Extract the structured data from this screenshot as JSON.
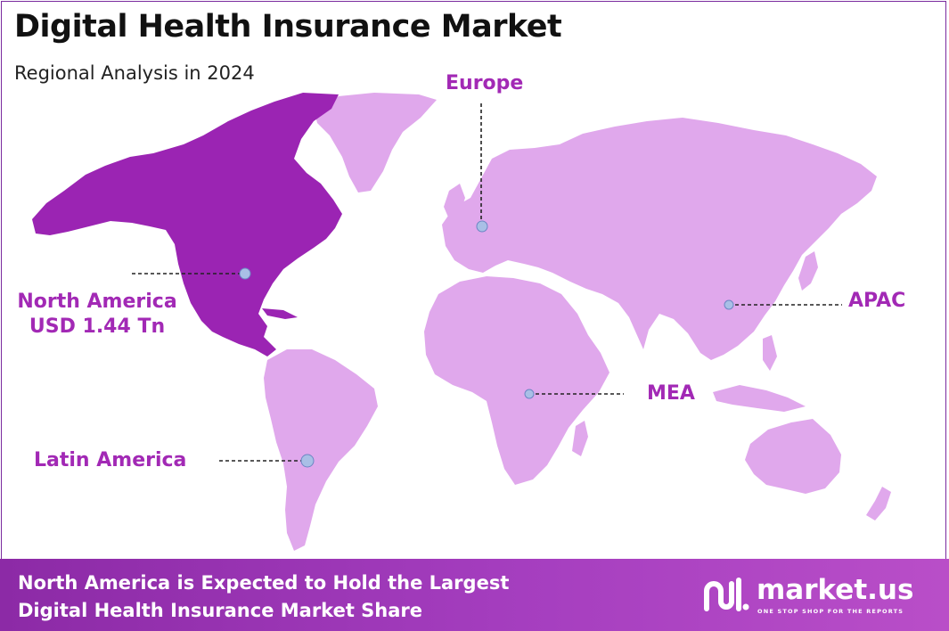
{
  "title": "Digital Health Insurance Market",
  "subtitle": "Regional Analysis in 2024",
  "colors": {
    "highlight_region": "#9b24b3",
    "other_regions": "#e0a8ec",
    "label_text": "#a229b5",
    "marker_fill": "#a9bfe6",
    "footer_start": "#8c2aa6",
    "footer_end": "#b94ec8"
  },
  "regions": {
    "north_america": {
      "name": "North America",
      "value": "USD 1.44 Tn",
      "highlighted": true
    },
    "europe": {
      "name": "Europe",
      "highlighted": false
    },
    "apac": {
      "name": "APAC",
      "highlighted": false
    },
    "mea": {
      "name": "MEA",
      "highlighted": false
    },
    "latin_america": {
      "name": "Latin America",
      "highlighted": false
    }
  },
  "footer": {
    "line1": "North America is Expected to Hold the Largest",
    "line2": "Digital Health Insurance Market Share"
  },
  "logo": {
    "name": "market.us",
    "tagline": "ONE STOP SHOP FOR THE REPORTS",
    "icon": "market-us-logo-icon"
  }
}
